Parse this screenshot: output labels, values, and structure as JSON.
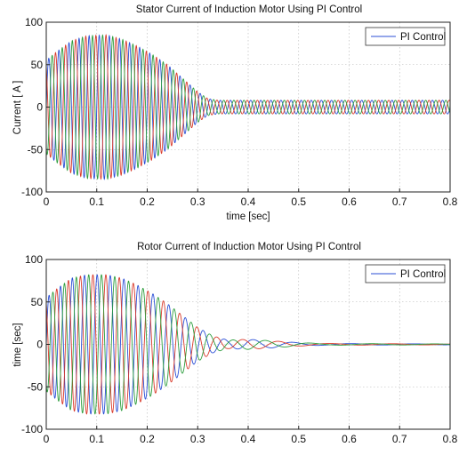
{
  "chart_data": [
    {
      "type": "line",
      "title": "Stator Current of Induction Motor Using PI Control",
      "xlabel": "time [sec]",
      "ylabel": "Current [ A ]",
      "xlim": [
        0,
        0.8
      ],
      "ylim": [
        -100,
        100
      ],
      "x_ticks": [
        "0",
        "0.1",
        "0.2",
        "0.3",
        "0.4",
        "0.5",
        "0.6",
        "0.7",
        "0.8"
      ],
      "y_ticks": [
        "100",
        "50",
        "0",
        "-50",
        "-100"
      ],
      "grid": true,
      "legend": {
        "position": "top-right",
        "entries": [
          "PI Control"
        ]
      },
      "series": [
        {
          "color": "#2b4fd6",
          "phase_deg": 0
        },
        {
          "color": "#d93a2b",
          "phase_deg": 120
        },
        {
          "color": "#2e9e3e",
          "phase_deg": 240
        }
      ],
      "waveform": {
        "description": "three-phase sinusoids",
        "frequency_hz": 50,
        "envelope": [
          [
            0.0,
            55
          ],
          [
            0.02,
            65
          ],
          [
            0.05,
            78
          ],
          [
            0.08,
            84
          ],
          [
            0.12,
            85
          ],
          [
            0.15,
            80
          ],
          [
            0.18,
            72
          ],
          [
            0.21,
            62
          ],
          [
            0.24,
            50
          ],
          [
            0.27,
            34
          ],
          [
            0.3,
            18
          ],
          [
            0.32,
            10
          ],
          [
            0.34,
            8
          ],
          [
            0.8,
            8
          ]
        ]
      }
    },
    {
      "type": "line",
      "title": "Rotor Current of Induction Motor Using PI Control",
      "xlabel": "",
      "ylabel": "time [sec]",
      "xlim": [
        0,
        0.8
      ],
      "ylim": [
        -100,
        100
      ],
      "x_ticks": [
        "0",
        "0.1",
        "0.2",
        "0.3",
        "0.4",
        "0.5",
        "0.6",
        "0.7",
        "0.8"
      ],
      "y_ticks": [
        "100",
        "50",
        "0",
        "-50",
        "-100"
      ],
      "grid": true,
      "legend": {
        "position": "top-right",
        "entries": [
          "PI Control"
        ]
      },
      "series": [
        {
          "color": "#2b4fd6",
          "phase_deg": 0
        },
        {
          "color": "#d93a2b",
          "phase_deg": 120
        },
        {
          "color": "#2e9e3e",
          "phase_deg": 240
        }
      ],
      "waveform": {
        "description": "three-phase sinusoids with decaying frequency",
        "frequency_hz": [
          [
            0.0,
            45
          ],
          [
            0.3,
            28
          ],
          [
            0.4,
            15
          ],
          [
            0.55,
            8
          ]
        ],
        "envelope": [
          [
            0.0,
            55
          ],
          [
            0.02,
            65
          ],
          [
            0.05,
            78
          ],
          [
            0.08,
            82
          ],
          [
            0.12,
            82
          ],
          [
            0.15,
            78
          ],
          [
            0.18,
            70
          ],
          [
            0.21,
            60
          ],
          [
            0.24,
            48
          ],
          [
            0.27,
            34
          ],
          [
            0.3,
            20
          ],
          [
            0.33,
            10
          ],
          [
            0.36,
            5
          ],
          [
            0.4,
            6
          ],
          [
            0.45,
            4
          ],
          [
            0.5,
            2
          ],
          [
            0.55,
            1
          ],
          [
            0.8,
            0.5
          ]
        ]
      }
    }
  ]
}
